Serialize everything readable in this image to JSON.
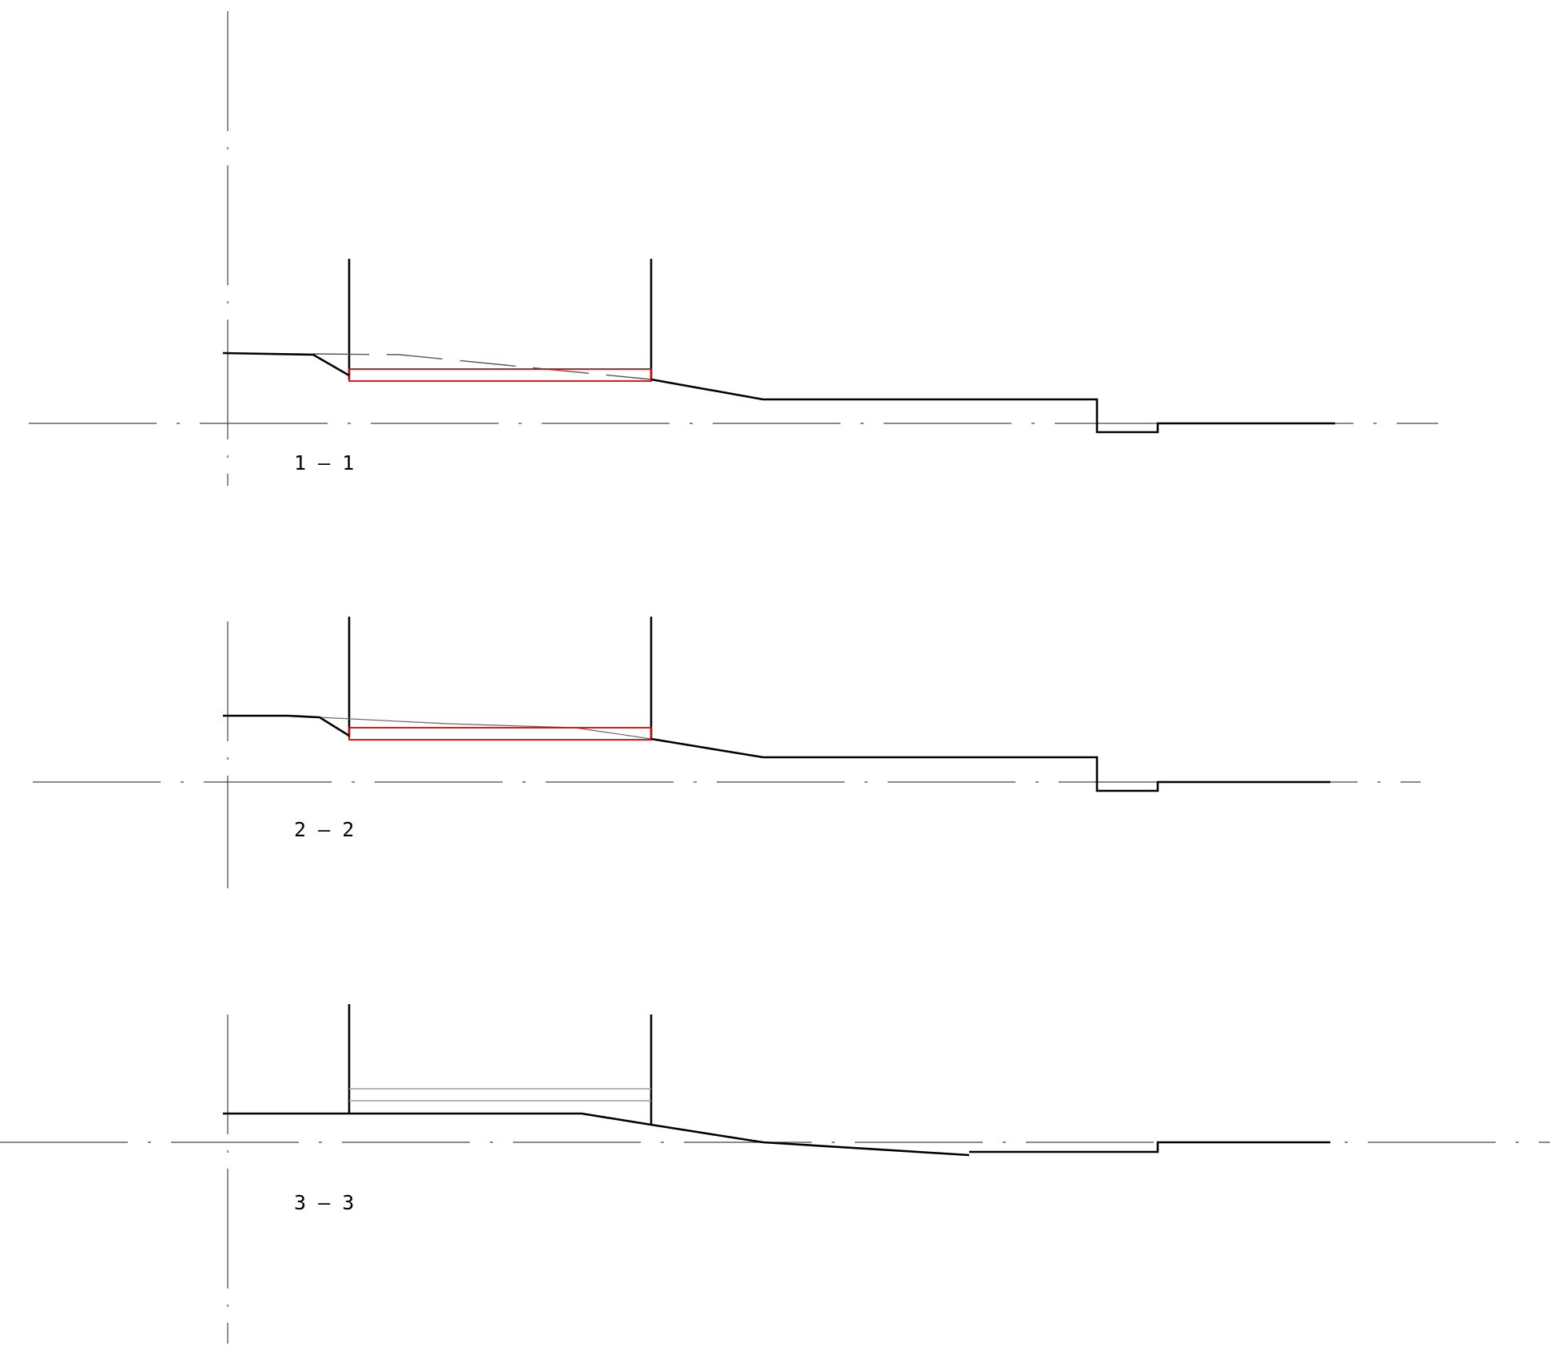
{
  "sections": [
    {
      "id": "1-1",
      "label": "1 – 1"
    },
    {
      "id": "2-2",
      "label": "2 – 2"
    },
    {
      "id": "3-3",
      "label": "3 – 3"
    }
  ],
  "colors": {
    "profile": "#000000",
    "slab": "#e00000",
    "guide": "#444444",
    "background": "#ffffff"
  }
}
